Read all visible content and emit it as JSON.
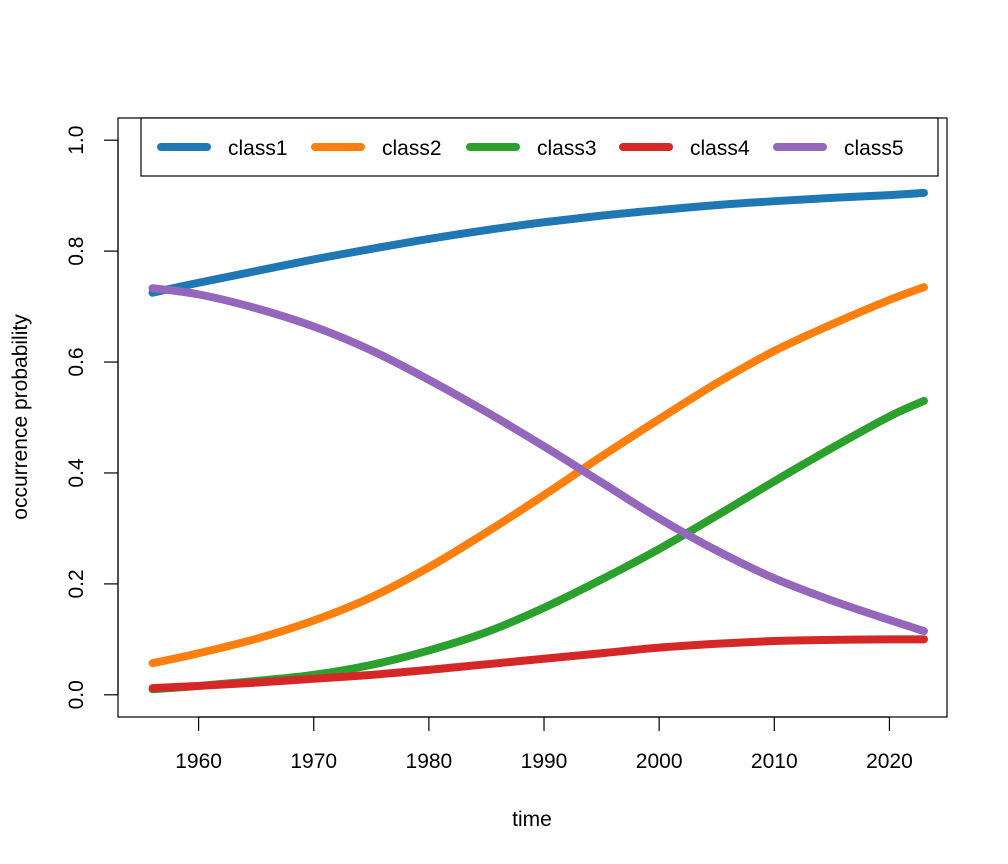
{
  "chart_data": {
    "type": "line",
    "title": "",
    "xlabel": "time",
    "ylabel": "occurrence probability",
    "xlim": [
      1953,
      2025
    ],
    "ylim": [
      -0.04,
      1.04
    ],
    "xticks": [
      1960,
      1970,
      1980,
      1990,
      2000,
      2010,
      2020
    ],
    "yticks": [
      0.0,
      0.2,
      0.4,
      0.6,
      0.8,
      1.0
    ],
    "ytick_labels": [
      "0.0",
      "0.2",
      "0.4",
      "0.6",
      "0.8",
      "1.0"
    ],
    "grid": false,
    "legend_position": "top",
    "x": [
      1956,
      1960,
      1965,
      1970,
      1975,
      1980,
      1985,
      1990,
      1995,
      2000,
      2005,
      2010,
      2015,
      2020,
      2023
    ],
    "series": [
      {
        "name": "class1",
        "color": "#1f77b4",
        "values": [
          0.725,
          0.743,
          0.764,
          0.785,
          0.804,
          0.822,
          0.838,
          0.852,
          0.864,
          0.874,
          0.883,
          0.89,
          0.896,
          0.901,
          0.905
        ]
      },
      {
        "name": "class2",
        "color": "#ff7f0e",
        "values": [
          0.057,
          0.075,
          0.101,
          0.134,
          0.176,
          0.23,
          0.293,
          0.36,
          0.43,
          0.497,
          0.562,
          0.62,
          0.668,
          0.712,
          0.735
        ]
      },
      {
        "name": "class3",
        "color": "#2ca02c",
        "values": [
          0.01,
          0.016,
          0.025,
          0.036,
          0.054,
          0.08,
          0.113,
          0.157,
          0.208,
          0.263,
          0.323,
          0.385,
          0.445,
          0.502,
          0.53
        ]
      },
      {
        "name": "class4",
        "color": "#d62728",
        "values": [
          0.012,
          0.016,
          0.022,
          0.029,
          0.036,
          0.045,
          0.055,
          0.065,
          0.075,
          0.085,
          0.092,
          0.097,
          0.099,
          0.1,
          0.1
        ]
      },
      {
        "name": "class5",
        "color": "#9467bd",
        "values": [
          0.733,
          0.722,
          0.697,
          0.664,
          0.621,
          0.568,
          0.51,
          0.448,
          0.383,
          0.318,
          0.26,
          0.21,
          0.17,
          0.135,
          0.115
        ]
      }
    ]
  }
}
